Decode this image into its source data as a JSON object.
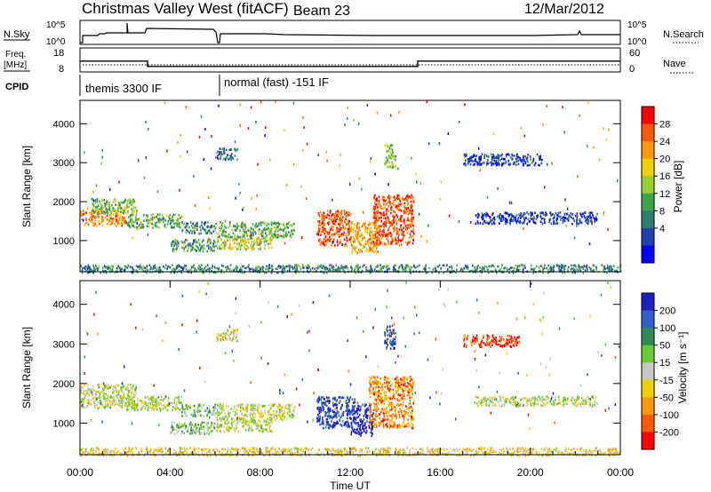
{
  "header": {
    "title": "Christmas Valley West (fitACF)",
    "beam": "Beam 23",
    "date": "12/Mar/2012"
  },
  "status_panels": {
    "nsky_label": "N.Sky",
    "nsky_ticks": [
      "10^5",
      "10^0"
    ],
    "nsearch_label": "N.Search",
    "nsearch_ticks": [
      "10^5",
      "10^0"
    ],
    "freq_label_line1": "Freq.",
    "freq_label_line2": "[MHz]",
    "freq_ticks": [
      "18",
      "8"
    ],
    "nave_label": "Nave",
    "nave_ticks": [
      "60",
      "0"
    ],
    "cpid_label": "CPID",
    "cpid_segments": [
      {
        "label": "themis 3300 IF",
        "start_hour": 0,
        "end_hour": 6
      },
      {
        "label": "normal (fast) -151 IF",
        "start_hour": 6,
        "end_hour": 24
      }
    ],
    "freq_steps": [
      {
        "start_hour": 0,
        "end_hour": 3,
        "value": 12.5
      },
      {
        "start_hour": 3,
        "end_hour": 15,
        "value": 10.3
      },
      {
        "start_hour": 15,
        "end_hour": 24,
        "value": 12.5
      }
    ]
  },
  "chart_data": [
    {
      "type": "heatmap",
      "name": "Power",
      "ylabel": "Slant Range [km]",
      "yticks": [
        "4000",
        "3000",
        "2000",
        "1000"
      ],
      "ylim": [
        200,
        4600
      ],
      "xlim": [
        0,
        24
      ],
      "colorbar_label": "Power [dB]",
      "colorbar_ticks": [
        "28",
        "24",
        "20",
        "16",
        "12",
        "8",
        "4"
      ],
      "colorbar_colors": [
        "#0000ff",
        "#2040b0",
        "#2e7d6e",
        "#3aa84a",
        "#9acd32",
        "#f0d000",
        "#ff9a00",
        "#ff5a00",
        "#ff0000"
      ],
      "regions": [
        {
          "t0": 0.0,
          "t1": 2.0,
          "r0": 1400,
          "r1": 1800,
          "level": 0.75
        },
        {
          "t0": 0.5,
          "t1": 2.5,
          "r0": 1700,
          "r1": 2100,
          "level": 0.45
        },
        {
          "t0": 2.0,
          "t1": 4.5,
          "r0": 1350,
          "r1": 1700,
          "level": 0.4
        },
        {
          "t0": 4.5,
          "t1": 6.0,
          "r0": 1200,
          "r1": 1500,
          "level": 0.3
        },
        {
          "t0": 4.0,
          "t1": 6.0,
          "r0": 750,
          "r1": 1050,
          "level": 0.35
        },
        {
          "t0": 6.0,
          "t1": 9.5,
          "r0": 1100,
          "r1": 1500,
          "level": 0.4
        },
        {
          "t0": 6.0,
          "t1": 8.5,
          "r0": 800,
          "r1": 1100,
          "level": 0.55
        },
        {
          "t0": 10.5,
          "t1": 12.0,
          "r0": 900,
          "r1": 1800,
          "level": 0.85
        },
        {
          "t0": 12.0,
          "t1": 13.2,
          "r0": 700,
          "r1": 1500,
          "level": 0.7
        },
        {
          "t0": 13.0,
          "t1": 14.8,
          "r0": 900,
          "r1": 2200,
          "level": 0.85
        },
        {
          "t0": 17.5,
          "t1": 23.0,
          "r0": 1450,
          "r1": 1750,
          "level": 0.15
        },
        {
          "t0": 6.0,
          "t1": 7.0,
          "r0": 3100,
          "r1": 3400,
          "level": 0.25
        },
        {
          "t0": 17.0,
          "t1": 20.5,
          "r0": 2950,
          "r1": 3250,
          "level": 0.15
        },
        {
          "t0": 13.5,
          "t1": 14.0,
          "r0": 2900,
          "r1": 3500,
          "level": 0.45
        },
        {
          "t0": 0.0,
          "t1": 24.0,
          "r0": 200,
          "r1": 400,
          "level": 0.3
        }
      ]
    },
    {
      "type": "heatmap",
      "name": "Velocity",
      "ylabel": "Slant Range [km]",
      "yticks": [
        "4000",
        "3000",
        "2000",
        "1000"
      ],
      "ylim": [
        200,
        4600
      ],
      "xlim": [
        0,
        24
      ],
      "xticks": [
        "00:00",
        "04:00",
        "08:00",
        "12:00",
        "16:00",
        "20:00",
        "00:00"
      ],
      "xlabel": "Time UT",
      "colorbar_label": "Velocity [m s⁻¹]",
      "colorbar_ticks": [
        "200",
        "100",
        "50",
        "15",
        "-15",
        "-50",
        "-100",
        "-200"
      ],
      "colorbar_colors": [
        "#2020c0",
        "#3060d0",
        "#2e8b57",
        "#66cc33",
        "#c8c8c0",
        "#f0d000",
        "#ff9a00",
        "#ff5a00",
        "#ff0000"
      ],
      "regions": [
        {
          "t0": 0.0,
          "t1": 2.5,
          "r0": 1400,
          "r1": 2000,
          "level": 0.5
        },
        {
          "t0": 2.0,
          "t1": 4.5,
          "r0": 1350,
          "r1": 1700,
          "level": 0.5
        },
        {
          "t0": 4.5,
          "t1": 6.0,
          "r0": 1200,
          "r1": 1500,
          "level": 0.4
        },
        {
          "t0": 4.0,
          "t1": 6.0,
          "r0": 750,
          "r1": 1050,
          "level": 0.4
        },
        {
          "t0": 6.0,
          "t1": 9.5,
          "r0": 1100,
          "r1": 1500,
          "level": 0.5
        },
        {
          "t0": 6.0,
          "t1": 8.5,
          "r0": 800,
          "r1": 1100,
          "level": 0.5
        },
        {
          "t0": 10.5,
          "t1": 12.2,
          "r0": 900,
          "r1": 1700,
          "level": 0.1
        },
        {
          "t0": 12.0,
          "t1": 13.0,
          "r0": 700,
          "r1": 1500,
          "level": 0.05
        },
        {
          "t0": 12.8,
          "t1": 14.8,
          "r0": 900,
          "r1": 2200,
          "level": 0.75
        },
        {
          "t0": 17.5,
          "t1": 23.0,
          "r0": 1450,
          "r1": 1700,
          "level": 0.5
        },
        {
          "t0": 6.0,
          "t1": 7.0,
          "r0": 3100,
          "r1": 3400,
          "level": 0.55
        },
        {
          "t0": 17.0,
          "t1": 19.5,
          "r0": 2950,
          "r1": 3250,
          "level": 0.9
        },
        {
          "t0": 13.5,
          "t1": 14.0,
          "r0": 2900,
          "r1": 3500,
          "level": 0.15
        },
        {
          "t0": 0.0,
          "t1": 24.0,
          "r0": 200,
          "r1": 400,
          "level": 0.6
        }
      ]
    }
  ]
}
